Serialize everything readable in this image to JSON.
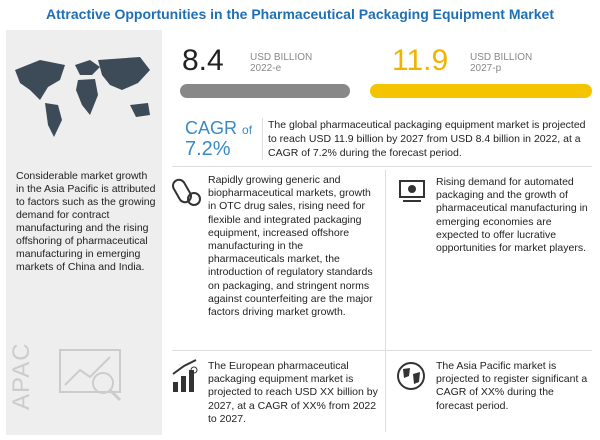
{
  "header": {
    "title": "Attractive Opportunities in the Pharmaceutical Packaging Equipment Market"
  },
  "stats": [
    {
      "value": 8.4,
      "unit": "USD BILLION",
      "year": "2022-e"
    },
    {
      "value": 11.9,
      "unit": "USD BILLION",
      "year": "2027-p"
    }
  ],
  "cagr": {
    "label": "CAGR",
    "of": "of",
    "value": "7.2%",
    "text": "The global pharmaceutical packaging equipment market is projected to reach USD 11.9 billion by 2027 from USD 8.4 billion in 2022, at a CAGR of 7.2% during the forecast period."
  },
  "sidebar": {
    "text": "Considerable market growth in the Asia Pacific is attributed to factors such as the growing demand for contract manufacturing and the rising offshoring of pharmaceutical manufacturing in emerging markets of China and India.",
    "region": "APAC"
  },
  "boxes": [
    {
      "text": "Rapidly growing generic and biopharmaceutical markets, growth in OTC drug sales, rising need for flexible and integrated packaging equipment, increased offshore manufacturing in the pharmaceuticals market, the introduction of regulatory standards on packaging, and stringent norms against counterfeiting are the major factors driving market growth."
    },
    {
      "text": "Rising demand for automated packaging and the growth of pharmaceutical manufacturing in emerging economies are expected to offer lucrative opportunities for market players."
    },
    {
      "text": "The European pharmaceutical packaging equipment market is projected to reach USD XX billion by 2027, at a CAGR of XX% from 2022 to 2027."
    },
    {
      "text": "The Asia Pacific market is projected to register significant a CAGR of XX% during the forecast period."
    }
  ]
}
